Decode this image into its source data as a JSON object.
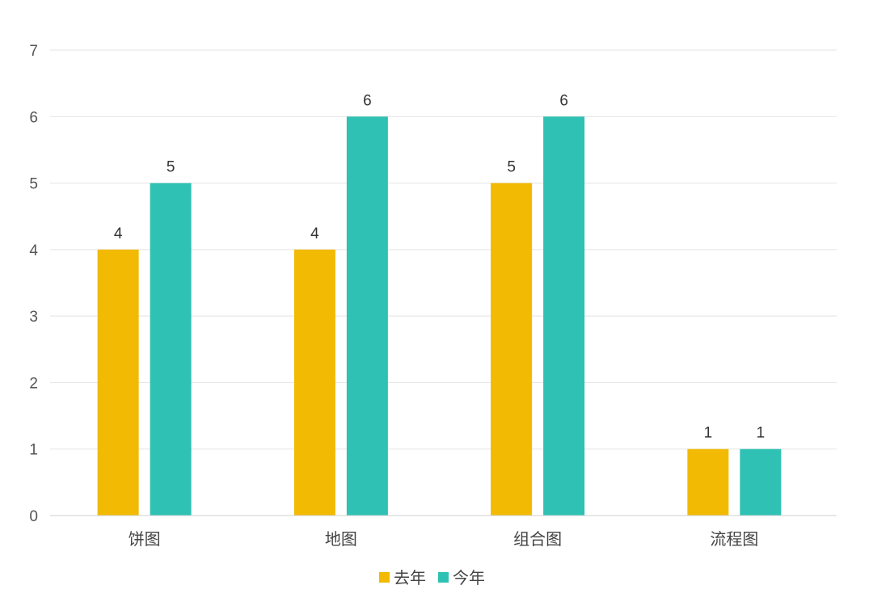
{
  "chart_data": {
    "type": "bar",
    "title": "",
    "xlabel": "",
    "ylabel": "",
    "ylim": [
      0,
      7
    ],
    "yticks": [
      0,
      1,
      2,
      3,
      4,
      5,
      6,
      7
    ],
    "grid": true,
    "legend_position": "bottom-center",
    "categories": [
      "饼图",
      "地图",
      "组合图",
      "流程图"
    ],
    "series": [
      {
        "name": "去年",
        "color": "#F2BA02",
        "values": [
          4,
          4,
          5,
          1
        ]
      },
      {
        "name": "今年",
        "color": "#2FC1B3",
        "values": [
          5,
          6,
          6,
          1
        ]
      }
    ]
  }
}
